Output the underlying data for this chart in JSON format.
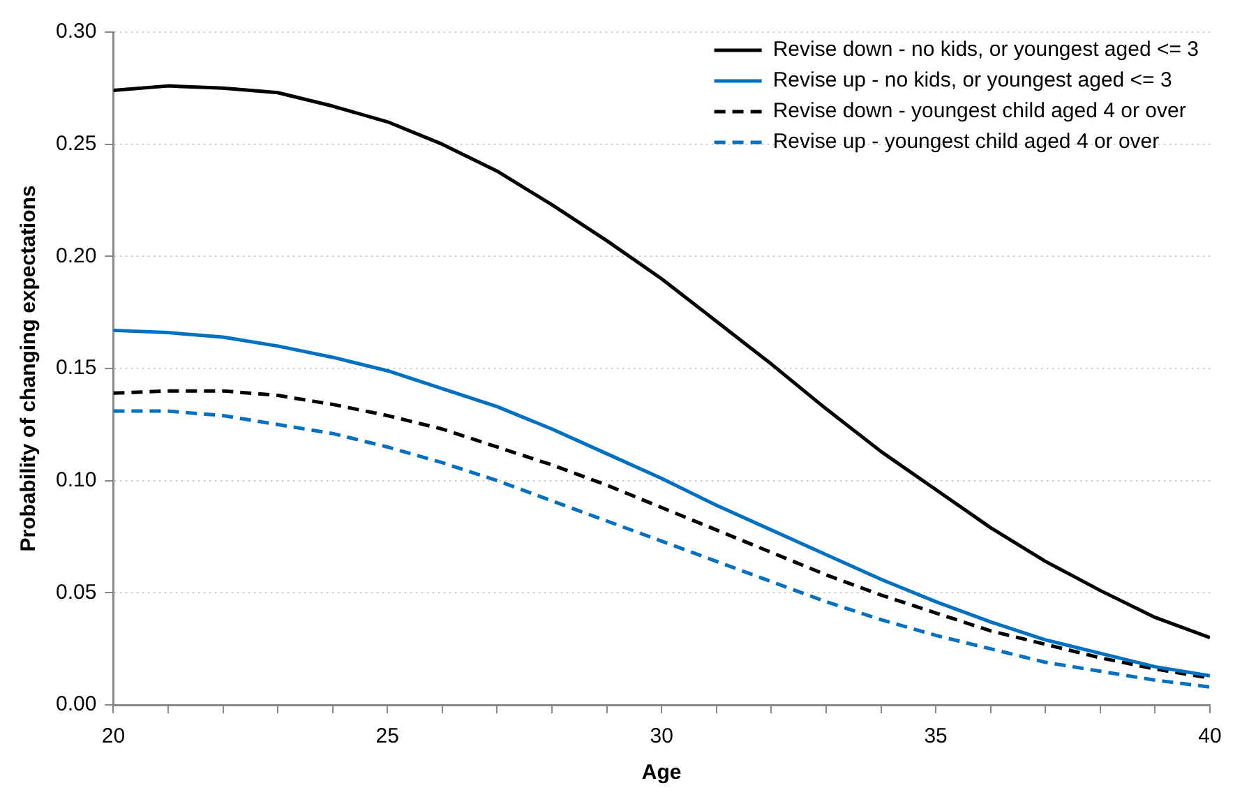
{
  "chart_data": {
    "type": "line",
    "xlabel": "Age",
    "ylabel": "Probability of changing expectations",
    "x": [
      20,
      21,
      22,
      23,
      24,
      25,
      26,
      27,
      28,
      29,
      30,
      31,
      32,
      33,
      34,
      35,
      36,
      37,
      38,
      39,
      40
    ],
    "xlim": [
      20,
      40
    ],
    "xticks": [
      20,
      {
        "value": 21,
        "label": null
      },
      {
        "value": 22,
        "label": null
      },
      {
        "value": 23,
        "label": null
      },
      {
        "value": 24,
        "label": null
      },
      25,
      {
        "value": 26,
        "label": null
      },
      {
        "value": 27,
        "label": null
      },
      {
        "value": 28,
        "label": null
      },
      {
        "value": 29,
        "label": null
      },
      30,
      {
        "value": 31,
        "label": null
      },
      {
        "value": 32,
        "label": null
      },
      {
        "value": 33,
        "label": null
      },
      {
        "value": 34,
        "label": null
      },
      35,
      {
        "value": 36,
        "label": null
      },
      {
        "value": 37,
        "label": null
      },
      {
        "value": 38,
        "label": null
      },
      {
        "value": 39,
        "label": null
      },
      40
    ],
    "ylim": [
      0,
      0.3
    ],
    "yticks": [
      {
        "value": 0,
        "label": "0.00"
      },
      {
        "value": 0.05,
        "label": "0.05"
      },
      {
        "value": 0.1,
        "label": "0.10"
      },
      {
        "value": 0.15,
        "label": "0.15"
      },
      {
        "value": 0.2,
        "label": "0.20"
      },
      {
        "value": 0.25,
        "label": "0.25"
      },
      {
        "value": 0.3,
        "label": "0.30"
      }
    ],
    "grid": "y",
    "legend": "top right",
    "marker": "none",
    "series": [
      {
        "name": "Revise down - no kids, or youngest aged <= 3",
        "color": "#000000",
        "line_style": "solid",
        "values": [
          0.274,
          0.276,
          0.275,
          0.273,
          0.267,
          0.26,
          0.25,
          0.238,
          0.223,
          0.207,
          0.19,
          0.171,
          0.152,
          0.132,
          0.113,
          0.096,
          0.079,
          0.064,
          0.051,
          0.039,
          0.03
        ]
      },
      {
        "name": "Revise up - no kids, or youngest aged <= 3",
        "color": "#0070c0",
        "line_style": "solid",
        "values": [
          0.167,
          0.166,
          0.164,
          0.16,
          0.155,
          0.149,
          0.141,
          0.133,
          0.123,
          0.112,
          0.101,
          0.089,
          0.078,
          0.067,
          0.056,
          0.046,
          0.037,
          0.029,
          0.023,
          0.017,
          0.013
        ]
      },
      {
        "name": "Revise down - youngest child aged 4 or over",
        "color": "#000000",
        "line_style": "dashed",
        "values": [
          0.139,
          0.14,
          0.14,
          0.138,
          0.134,
          0.129,
          0.123,
          0.115,
          0.107,
          0.098,
          0.088,
          0.078,
          0.068,
          0.058,
          0.049,
          0.041,
          0.033,
          0.027,
          0.021,
          0.016,
          0.012
        ]
      },
      {
        "name": "Revise up - youngest child aged 4 or over",
        "color": "#0070c0",
        "line_style": "dashed",
        "values": [
          0.131,
          0.131,
          0.129,
          0.125,
          0.121,
          0.115,
          0.108,
          0.1,
          0.091,
          0.082,
          0.073,
          0.064,
          0.055,
          0.046,
          0.038,
          0.031,
          0.025,
          0.019,
          0.015,
          0.011,
          0.008
        ]
      }
    ]
  }
}
